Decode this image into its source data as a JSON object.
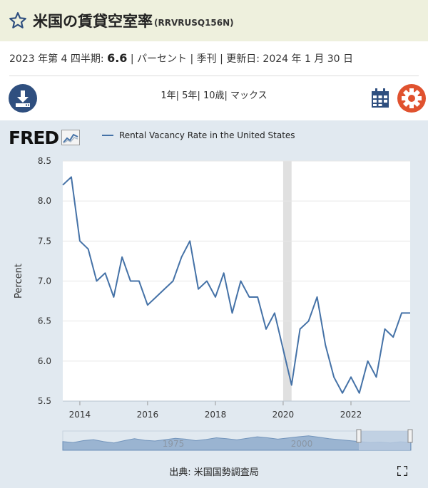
{
  "header": {
    "title": "米国の賃貸空室率",
    "series_id": "(RRVRUSQ156N)"
  },
  "meta": {
    "period": "2023 年第 4 四半期:",
    "value": "6.6",
    "rest": "| パーセント | 季刊 | 更新日: 2024 年 1 月 30 日"
  },
  "toolbar": {
    "ranges": [
      "1年",
      "5年",
      "10歳",
      "マックス"
    ],
    "download_icon": "download-icon",
    "calendar_icon": "calendar-icon",
    "settings_icon": "gear-icon"
  },
  "logo": {
    "text": "FRED"
  },
  "footer": {
    "source": "出典: 米国国勢調査局"
  },
  "colors": {
    "title_bg": "#eef0dd",
    "chart_bg": "#e1e9f0",
    "line": "#4572a7",
    "download_btn": "#2f4f7f",
    "gear_btn": "#e0522f",
    "recession": "#e0e0e0"
  },
  "chart_data": {
    "type": "line",
    "ylabel": "Percent",
    "ylim": [
      5.5,
      8.5
    ],
    "yticks": [
      "8.5",
      "8.0",
      "7.5",
      "7.0",
      "6.5",
      "6.0",
      "5.5"
    ],
    "xticks": [
      "2014",
      "2016",
      "2018",
      "2020",
      "2022"
    ],
    "recession": [
      "2020-01",
      "2020-04"
    ],
    "navigator_labels": [
      "1975",
      "2000"
    ],
    "series": [
      {
        "name": "Rental Vacancy Rate in the United States",
        "points": [
          [
            "2013-07-01",
            8.2
          ],
          [
            "2013-10-01",
            8.3
          ],
          [
            "2014-01-01",
            7.5
          ],
          [
            "2014-04-01",
            7.4
          ],
          [
            "2014-07-01",
            7.0
          ],
          [
            "2014-10-01",
            7.1
          ],
          [
            "2015-01-01",
            6.8
          ],
          [
            "2015-04-01",
            7.3
          ],
          [
            "2015-07-01",
            7.0
          ],
          [
            "2015-10-01",
            7.0
          ],
          [
            "2016-01-01",
            6.7
          ],
          [
            "2016-04-01",
            6.8
          ],
          [
            "2016-07-01",
            6.9
          ],
          [
            "2016-10-01",
            7.0
          ],
          [
            "2017-01-01",
            7.3
          ],
          [
            "2017-04-01",
            7.5
          ],
          [
            "2017-07-01",
            6.9
          ],
          [
            "2017-10-01",
            7.0
          ],
          [
            "2018-01-01",
            6.8
          ],
          [
            "2018-04-01",
            7.1
          ],
          [
            "2018-07-01",
            6.6
          ],
          [
            "2018-10-01",
            7.0
          ],
          [
            "2019-01-01",
            6.8
          ],
          [
            "2019-04-01",
            6.8
          ],
          [
            "2019-07-01",
            6.4
          ],
          [
            "2019-10-01",
            6.6
          ],
          [
            "2020-04-01",
            5.7
          ],
          [
            "2020-07-01",
            6.4
          ],
          [
            "2020-10-01",
            6.5
          ],
          [
            "2021-01-01",
            6.8
          ],
          [
            "2021-04-01",
            6.2
          ],
          [
            "2021-07-01",
            5.8
          ],
          [
            "2021-10-01",
            5.6
          ],
          [
            "2022-01-01",
            5.8
          ],
          [
            "2022-04-01",
            5.6
          ],
          [
            "2022-07-01",
            6.0
          ],
          [
            "2022-10-01",
            5.8
          ],
          [
            "2023-01-01",
            6.4
          ],
          [
            "2023-04-01",
            6.3
          ],
          [
            "2023-07-01",
            6.6
          ],
          [
            "2023-10-01",
            6.6
          ]
        ]
      }
    ]
  }
}
